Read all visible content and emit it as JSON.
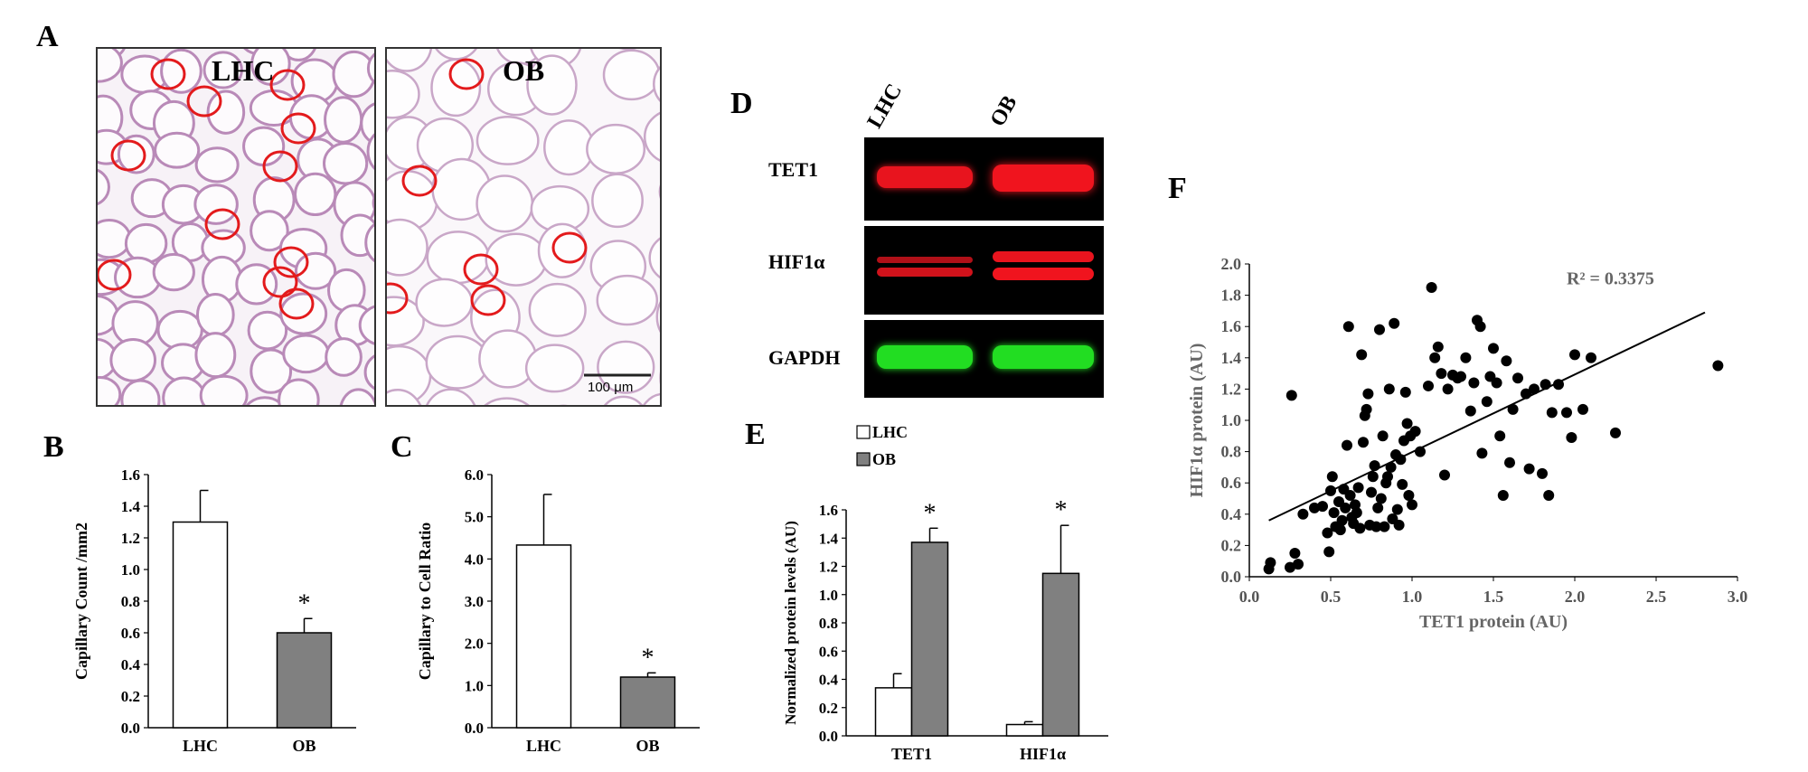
{
  "panels": {
    "a": "A",
    "b": "B",
    "c": "C",
    "d": "D",
    "e": "E",
    "f": "F"
  },
  "panel_a": {
    "left_title": "LHC",
    "right_title": "OB",
    "scale_bar": "100 μm",
    "circle_color": "#e31a1c",
    "left_circle_count": 11,
    "right_circle_count": 6
  },
  "panel_d": {
    "lanes": [
      "LHC",
      "OB"
    ],
    "rows": [
      "TET1",
      "HIF1α",
      "GAPDH"
    ],
    "colors": {
      "TET1": "#e8141e",
      "HIF1α": "#e8141e",
      "GAPDH": "#22dd22"
    }
  },
  "chart_data": [
    {
      "id": "B",
      "type": "bar",
      "categories": [
        "LHC",
        "OB"
      ],
      "values": [
        1.3,
        0.6
      ],
      "errors": [
        0.2,
        0.09
      ],
      "colors": [
        "#ffffff",
        "#808080"
      ],
      "ylabel": "Capillary Count /mm2",
      "ylim": [
        0,
        1.6
      ],
      "yticks": [
        "0.0",
        "0.2",
        "0.4",
        "0.6",
        "0.8",
        "1.0",
        "1.2",
        "1.4",
        "1.6"
      ],
      "significance": [
        null,
        "*"
      ]
    },
    {
      "id": "C",
      "type": "bar",
      "categories": [
        "LHC",
        "OB"
      ],
      "values": [
        4.33,
        1.2
      ],
      "errors": [
        1.2,
        0.1
      ],
      "colors": [
        "#ffffff",
        "#808080"
      ],
      "ylabel": "Capillary to Cell Ratio",
      "ylim": [
        0,
        6
      ],
      "yticks": [
        "0.0",
        "1.0",
        "2.0",
        "3.0",
        "4.0",
        "5.0",
        "6.0"
      ],
      "significance": [
        null,
        "*"
      ]
    },
    {
      "id": "E",
      "type": "bar",
      "categories": [
        "TET1",
        "HIF1α"
      ],
      "series": [
        {
          "name": "LHC",
          "values": [
            0.34,
            0.08
          ],
          "errors": [
            0.1,
            0.02
          ],
          "color": "#ffffff"
        },
        {
          "name": "OB",
          "values": [
            1.37,
            1.15
          ],
          "errors": [
            0.1,
            0.34
          ],
          "color": "#808080"
        }
      ],
      "ylabel": "Normalized protein levels (AU)",
      "ylim": [
        0,
        1.6
      ],
      "yticks": [
        "0.0",
        "0.2",
        "0.4",
        "0.6",
        "0.8",
        "1.0",
        "1.2",
        "1.4",
        "1.6"
      ],
      "legend": "top-left",
      "significance": [
        "*",
        "*"
      ]
    },
    {
      "id": "F",
      "type": "scatter",
      "xlabel": "TET1 protein (AU)",
      "ylabel": "HIF1α protein (AU)",
      "xlim": [
        0,
        3
      ],
      "ylim": [
        0,
        2
      ],
      "xticks": [
        "0.0",
        "0.5",
        "1.0",
        "1.5",
        "2.0",
        "2.5",
        "3.0"
      ],
      "yticks": [
        "0.0",
        "0.2",
        "0.4",
        "0.6",
        "0.8",
        "1.0",
        "1.2",
        "1.4",
        "1.6",
        "1.8",
        "2.0"
      ],
      "annotation": "R² = 0.3375",
      "trendline": {
        "x": [
          0.12,
          2.8
        ],
        "y": [
          0.36,
          1.69
        ]
      },
      "points": [
        [
          0.12,
          0.05
        ],
        [
          0.13,
          0.09
        ],
        [
          0.25,
          0.06
        ],
        [
          0.26,
          1.16
        ],
        [
          0.28,
          0.15
        ],
        [
          0.3,
          0.08
        ],
        [
          0.33,
          0.4
        ],
        [
          0.4,
          0.44
        ],
        [
          0.45,
          0.45
        ],
        [
          0.48,
          0.28
        ],
        [
          0.49,
          0.16
        ],
        [
          0.5,
          0.55
        ],
        [
          0.51,
          0.64
        ],
        [
          0.52,
          0.41
        ],
        [
          0.53,
          0.32
        ],
        [
          0.55,
          0.48
        ],
        [
          0.56,
          0.3
        ],
        [
          0.57,
          0.36
        ],
        [
          0.58,
          0.56
        ],
        [
          0.59,
          0.44
        ],
        [
          0.6,
          0.84
        ],
        [
          0.61,
          1.6
        ],
        [
          0.62,
          0.52
        ],
        [
          0.63,
          0.38
        ],
        [
          0.64,
          0.34
        ],
        [
          0.65,
          0.46
        ],
        [
          0.66,
          0.41
        ],
        [
          0.67,
          0.57
        ],
        [
          0.68,
          0.31
        ],
        [
          0.69,
          1.42
        ],
        [
          0.7,
          0.86
        ],
        [
          0.71,
          1.03
        ],
        [
          0.72,
          1.07
        ],
        [
          0.73,
          1.17
        ],
        [
          0.74,
          0.33
        ],
        [
          0.75,
          0.54
        ],
        [
          0.76,
          0.64
        ],
        [
          0.77,
          0.71
        ],
        [
          0.78,
          0.32
        ],
        [
          0.79,
          0.44
        ],
        [
          0.8,
          1.58
        ],
        [
          0.81,
          0.5
        ],
        [
          0.82,
          0.9
        ],
        [
          0.83,
          0.32
        ],
        [
          0.84,
          0.6
        ],
        [
          0.85,
          0.64
        ],
        [
          0.86,
          1.2
        ],
        [
          0.87,
          0.7
        ],
        [
          0.88,
          0.37
        ],
        [
          0.89,
          1.62
        ],
        [
          0.9,
          0.78
        ],
        [
          0.91,
          0.43
        ],
        [
          0.92,
          0.33
        ],
        [
          0.93,
          0.75
        ],
        [
          0.94,
          0.59
        ],
        [
          0.95,
          0.87
        ],
        [
          0.96,
          1.18
        ],
        [
          0.97,
          0.98
        ],
        [
          0.98,
          0.52
        ],
        [
          0.99,
          0.9
        ],
        [
          1.0,
          0.46
        ],
        [
          1.02,
          0.93
        ],
        [
          1.05,
          0.8
        ],
        [
          1.1,
          1.22
        ],
        [
          1.12,
          1.85
        ],
        [
          1.14,
          1.4
        ],
        [
          1.16,
          1.47
        ],
        [
          1.18,
          1.3
        ],
        [
          1.2,
          0.65
        ],
        [
          1.22,
          1.2
        ],
        [
          1.25,
          1.29
        ],
        [
          1.28,
          1.27
        ],
        [
          1.3,
          1.28
        ],
        [
          1.33,
          1.4
        ],
        [
          1.36,
          1.06
        ],
        [
          1.38,
          1.24
        ],
        [
          1.4,
          1.64
        ],
        [
          1.42,
          1.6
        ],
        [
          1.43,
          0.79
        ],
        [
          1.46,
          1.12
        ],
        [
          1.48,
          1.28
        ],
        [
          1.5,
          1.46
        ],
        [
          1.52,
          1.24
        ],
        [
          1.54,
          0.9
        ],
        [
          1.56,
          0.52
        ],
        [
          1.58,
          1.38
        ],
        [
          1.6,
          0.73
        ],
        [
          1.62,
          1.07
        ],
        [
          1.65,
          1.27
        ],
        [
          1.7,
          1.17
        ],
        [
          1.72,
          0.69
        ],
        [
          1.75,
          1.2
        ],
        [
          1.8,
          0.66
        ],
        [
          1.82,
          1.23
        ],
        [
          1.84,
          0.52
        ],
        [
          1.86,
          1.05
        ],
        [
          1.9,
          1.23
        ],
        [
          1.95,
          1.05
        ],
        [
          1.98,
          0.89
        ],
        [
          2.0,
          1.42
        ],
        [
          2.05,
          1.07
        ],
        [
          2.1,
          1.4
        ],
        [
          2.25,
          0.92
        ],
        [
          2.88,
          1.35
        ]
      ]
    }
  ]
}
